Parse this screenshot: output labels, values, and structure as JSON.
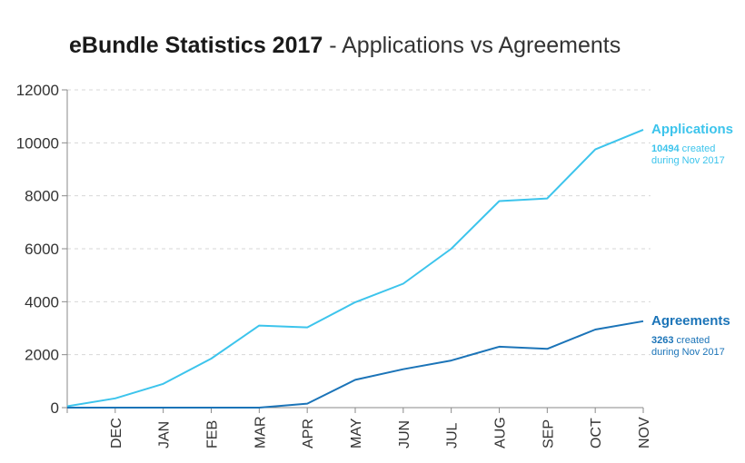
{
  "title": {
    "bold": "eBundle Statistics 2017",
    "rest": " - Applications vs Agreements"
  },
  "chart_data": {
    "type": "line",
    "title": "eBundle Statistics 2017 - Applications vs Agreements",
    "categories": [
      "",
      "DEC",
      "JAN",
      "FEB",
      "MAR",
      "APR",
      "MAY",
      "JUN",
      "JUL",
      "AUG",
      "SEP",
      "OCT",
      "NOV"
    ],
    "ylim": [
      0,
      12000
    ],
    "yticks": [
      0,
      2000,
      4000,
      6000,
      8000,
      10000,
      12000
    ],
    "ytick_labels": [
      "0",
      "2000",
      "4000",
      "6000",
      "8000",
      "10000",
      "12000"
    ],
    "grid": true,
    "series": [
      {
        "name": "Applications",
        "color": "#3cc4ec",
        "values": [
          50,
          350,
          900,
          1850,
          3100,
          3030,
          3980,
          4680,
          6000,
          7800,
          7900,
          9750,
          10494
        ],
        "note_number": "10494",
        "note_text1": " created",
        "note_text2": "during Nov 2017"
      },
      {
        "name": "Agreements",
        "color": "#1b74b8",
        "values": [
          0,
          0,
          0,
          0,
          0,
          150,
          1050,
          1450,
          1780,
          2300,
          2220,
          2950,
          3263
        ],
        "note_number": "3263",
        "note_text1": " created",
        "note_text2": "during Nov 2017"
      }
    ]
  }
}
